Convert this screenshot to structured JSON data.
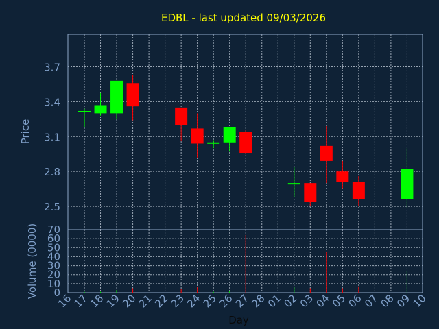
{
  "colors": {
    "background": "#0f2236",
    "axis": "#8fa8c8",
    "grid": "#c8d2de",
    "label": "#7f9fc8",
    "title": "#ffff00",
    "up": "#00ff00",
    "down": "#ff0000"
  },
  "chart_data": [
    {
      "type": "candlestick",
      "title": "EDBL - last updated 09/03/2026",
      "xlabel": "",
      "ylabel": "Price",
      "ylim": [
        2.3,
        3.98
      ],
      "yticks": [
        2.5,
        2.8,
        3.1,
        3.4,
        3.7
      ],
      "grid": true,
      "categories": [
        "16",
        "17",
        "18",
        "19",
        "20",
        "21",
        "22",
        "23",
        "24",
        "25",
        "26",
        "27",
        "28",
        "01",
        "02",
        "03",
        "04",
        "05",
        "06",
        "07",
        "08",
        "09",
        "10"
      ],
      "candles": [
        {
          "x": "17",
          "open": 3.31,
          "high": 3.34,
          "low": 3.18,
          "close": 3.32
        },
        {
          "x": "18",
          "open": 3.3,
          "high": 3.48,
          "low": 3.28,
          "close": 3.37
        },
        {
          "x": "19",
          "open": 3.3,
          "high": 3.58,
          "low": 3.25,
          "close": 3.58
        },
        {
          "x": "20",
          "open": 3.56,
          "high": 3.63,
          "low": 3.24,
          "close": 3.36
        },
        {
          "x": "23",
          "open": 3.35,
          "high": 3.35,
          "low": 3.06,
          "close": 3.2
        },
        {
          "x": "24",
          "open": 3.17,
          "high": 3.3,
          "low": 2.92,
          "close": 3.04
        },
        {
          "x": "25",
          "open": 3.04,
          "high": 3.07,
          "low": 3.0,
          "close": 3.05
        },
        {
          "x": "26",
          "open": 3.05,
          "high": 3.18,
          "low": 2.97,
          "close": 3.18
        },
        {
          "x": "27",
          "open": 3.14,
          "high": 3.16,
          "low": 2.95,
          "close": 2.96
        },
        {
          "x": "02",
          "open": 2.69,
          "high": 2.84,
          "low": 2.58,
          "close": 2.7
        },
        {
          "x": "03",
          "open": 2.7,
          "high": 2.7,
          "low": 2.5,
          "close": 2.54
        },
        {
          "x": "04",
          "open": 3.02,
          "high": 3.19,
          "low": 2.7,
          "close": 2.89
        },
        {
          "x": "05",
          "open": 2.8,
          "high": 2.89,
          "low": 2.65,
          "close": 2.71
        },
        {
          "x": "06",
          "open": 2.71,
          "high": 2.76,
          "low": 2.5,
          "close": 2.56
        },
        {
          "x": "09",
          "open": 2.56,
          "high": 3.0,
          "low": 2.49,
          "close": 2.82
        }
      ]
    },
    {
      "type": "bar",
      "xlabel": "Day",
      "ylabel": "Volume (0000)",
      "ylim": [
        0,
        70
      ],
      "yticks": [
        0,
        10,
        20,
        30,
        40,
        50,
        60,
        70
      ],
      "grid": true,
      "categories": [
        "16",
        "17",
        "18",
        "19",
        "20",
        "21",
        "22",
        "23",
        "24",
        "25",
        "26",
        "27",
        "28",
        "01",
        "02",
        "03",
        "04",
        "05",
        "06",
        "07",
        "08",
        "09",
        "10"
      ],
      "bars": [
        {
          "x": "17",
          "value": 1,
          "direction": "up"
        },
        {
          "x": "18",
          "value": 1,
          "direction": "up"
        },
        {
          "x": "19",
          "value": 3,
          "direction": "up"
        },
        {
          "x": "20",
          "value": 5,
          "direction": "down"
        },
        {
          "x": "23",
          "value": 4,
          "direction": "down"
        },
        {
          "x": "24",
          "value": 6,
          "direction": "down"
        },
        {
          "x": "25",
          "value": 1,
          "direction": "up"
        },
        {
          "x": "26",
          "value": 2,
          "direction": "up"
        },
        {
          "x": "27",
          "value": 64,
          "direction": "down"
        },
        {
          "x": "02",
          "value": 6,
          "direction": "up"
        },
        {
          "x": "03",
          "value": 5,
          "direction": "down"
        },
        {
          "x": "04",
          "value": 45,
          "direction": "down"
        },
        {
          "x": "05",
          "value": 5,
          "direction": "down"
        },
        {
          "x": "06",
          "value": 7,
          "direction": "down"
        },
        {
          "x": "09",
          "value": 24,
          "direction": "up"
        }
      ]
    }
  ]
}
